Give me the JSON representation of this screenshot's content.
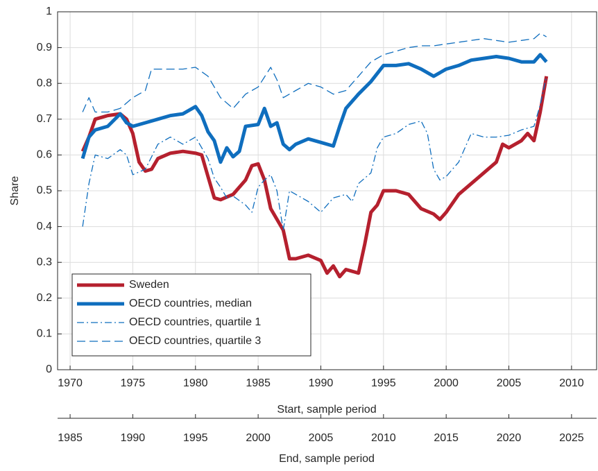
{
  "chart_data": {
    "type": "line",
    "ylabel": "Share",
    "xlabel": "Start, sample period",
    "x2label": "End, sample period",
    "xlim": [
      1969,
      2012
    ],
    "xticks": [
      1970,
      1975,
      1980,
      1985,
      1990,
      1995,
      2000,
      2005,
      2010
    ],
    "x2lim": [
      1984,
      2027
    ],
    "x2ticks": [
      1985,
      1990,
      1995,
      2000,
      2005,
      2010,
      2015,
      2020,
      2025
    ],
    "ylim": [
      0,
      1
    ],
    "yticks": [
      0,
      0.1,
      0.2,
      0.3,
      0.4,
      0.5,
      0.6,
      0.7,
      0.8,
      0.9,
      1
    ],
    "grid": true,
    "legend": "lower left",
    "series": [
      {
        "name": "Sweden",
        "color": "#b5202e",
        "style": "solid",
        "width": 5,
        "x": [
          1971,
          1971.5,
          1972,
          1973,
          1974,
          1974.5,
          1975,
          1975.5,
          1976,
          1976.5,
          1977,
          1978,
          1979,
          1980,
          1980.5,
          1981,
          1981.5,
          1982,
          1983,
          1984,
          1984.5,
          1985,
          1985.5,
          1986,
          1987,
          1987.5,
          1988,
          1989,
          1990,
          1990.5,
          1991,
          1991.5,
          1992,
          1993,
          1993.5,
          1994,
          1994.5,
          1995,
          1996,
          1997,
          1998,
          1999,
          1999.5,
          2000,
          2001,
          2002,
          2003,
          2004,
          2004.5,
          2005,
          2006,
          2006.5,
          2007,
          2007.5,
          2008
        ],
        "values": [
          0.61,
          0.65,
          0.7,
          0.71,
          0.715,
          0.7,
          0.66,
          0.58,
          0.555,
          0.56,
          0.59,
          0.605,
          0.61,
          0.605,
          0.6,
          0.54,
          0.48,
          0.475,
          0.49,
          0.53,
          0.57,
          0.575,
          0.53,
          0.45,
          0.39,
          0.31,
          0.31,
          0.32,
          0.305,
          0.27,
          0.29,
          0.26,
          0.28,
          0.27,
          0.35,
          0.44,
          0.46,
          0.5,
          0.5,
          0.49,
          0.45,
          0.435,
          0.42,
          0.44,
          0.49,
          0.52,
          0.55,
          0.58,
          0.63,
          0.62,
          0.64,
          0.66,
          0.64,
          0.72,
          0.82
        ]
      },
      {
        "name": "OECD countries, median",
        "color": "#0f6ebe",
        "style": "solid",
        "width": 5,
        "x": [
          1971,
          1971.5,
          1972,
          1973,
          1974,
          1974.5,
          1975,
          1976,
          1977,
          1978,
          1979,
          1980,
          1980.5,
          1981,
          1981.5,
          1982,
          1982.5,
          1983,
          1983.5,
          1984,
          1985,
          1985.5,
          1986,
          1986.5,
          1987,
          1987.5,
          1988,
          1989,
          1990,
          1991,
          1991.5,
          1992,
          1993,
          1994,
          1995,
          1996,
          1997,
          1998,
          1999,
          2000,
          2001,
          2002,
          2003,
          2004,
          2005,
          2006,
          2007,
          2007.5,
          2008
        ],
        "values": [
          0.59,
          0.65,
          0.67,
          0.68,
          0.715,
          0.69,
          0.68,
          0.69,
          0.7,
          0.71,
          0.715,
          0.735,
          0.71,
          0.665,
          0.64,
          0.58,
          0.62,
          0.595,
          0.61,
          0.68,
          0.685,
          0.73,
          0.68,
          0.69,
          0.63,
          0.615,
          0.63,
          0.645,
          0.635,
          0.625,
          0.68,
          0.73,
          0.77,
          0.805,
          0.85,
          0.85,
          0.855,
          0.84,
          0.82,
          0.84,
          0.85,
          0.865,
          0.87,
          0.875,
          0.87,
          0.86,
          0.86,
          0.88,
          0.86
        ]
      },
      {
        "name": "OECD countries, quartile 1",
        "color": "#0f6ebe",
        "style": "dashdot",
        "width": 1.3,
        "x": [
          1971,
          1971.5,
          1972,
          1973,
          1974,
          1974.5,
          1975,
          1976,
          1977,
          1978,
          1979,
          1980,
          1980.5,
          1981,
          1981.5,
          1982,
          1982.5,
          1983,
          1984,
          1984.5,
          1985,
          1985.5,
          1986,
          1986.5,
          1987,
          1987.5,
          1988,
          1989,
          1990,
          1991,
          1992,
          1992.5,
          1993,
          1994,
          1994.5,
          1995,
          1996,
          1997,
          1998,
          1998.5,
          1999,
          1999.5,
          2000,
          2001,
          2002,
          2003,
          2004,
          2005,
          2006,
          2007,
          2007.5,
          2008
        ],
        "values": [
          0.4,
          0.52,
          0.6,
          0.59,
          0.615,
          0.6,
          0.545,
          0.56,
          0.63,
          0.65,
          0.63,
          0.65,
          0.62,
          0.59,
          0.535,
          0.51,
          0.48,
          0.485,
          0.46,
          0.44,
          0.51,
          0.53,
          0.545,
          0.5,
          0.39,
          0.5,
          0.49,
          0.47,
          0.44,
          0.48,
          0.49,
          0.47,
          0.52,
          0.55,
          0.62,
          0.65,
          0.66,
          0.685,
          0.695,
          0.66,
          0.56,
          0.53,
          0.54,
          0.58,
          0.66,
          0.65,
          0.65,
          0.655,
          0.67,
          0.68,
          0.74,
          0.82
        ]
      },
      {
        "name": "OECD countries, quartile 3",
        "color": "#0f6ebe",
        "style": "dash",
        "width": 1.3,
        "x": [
          1971,
          1971.5,
          1972,
          1973,
          1974,
          1975,
          1976,
          1976.5,
          1977,
          1978,
          1979,
          1980,
          1981,
          1981.5,
          1982,
          1983,
          1984,
          1985,
          1986,
          1986.5,
          1987,
          1988,
          1989,
          1990,
          1991,
          1992,
          1993,
          1994,
          1995,
          1996,
          1997,
          1998,
          1999,
          2000,
          2001,
          2002,
          2003,
          2004,
          2005,
          2006,
          2007,
          2007.5,
          2008
        ],
        "values": [
          0.72,
          0.76,
          0.72,
          0.72,
          0.73,
          0.76,
          0.78,
          0.84,
          0.84,
          0.84,
          0.84,
          0.845,
          0.82,
          0.79,
          0.76,
          0.73,
          0.77,
          0.79,
          0.845,
          0.81,
          0.76,
          0.78,
          0.8,
          0.79,
          0.77,
          0.78,
          0.82,
          0.86,
          0.88,
          0.89,
          0.9,
          0.905,
          0.905,
          0.91,
          0.915,
          0.92,
          0.925,
          0.92,
          0.915,
          0.92,
          0.925,
          0.94,
          0.93
        ]
      }
    ]
  }
}
